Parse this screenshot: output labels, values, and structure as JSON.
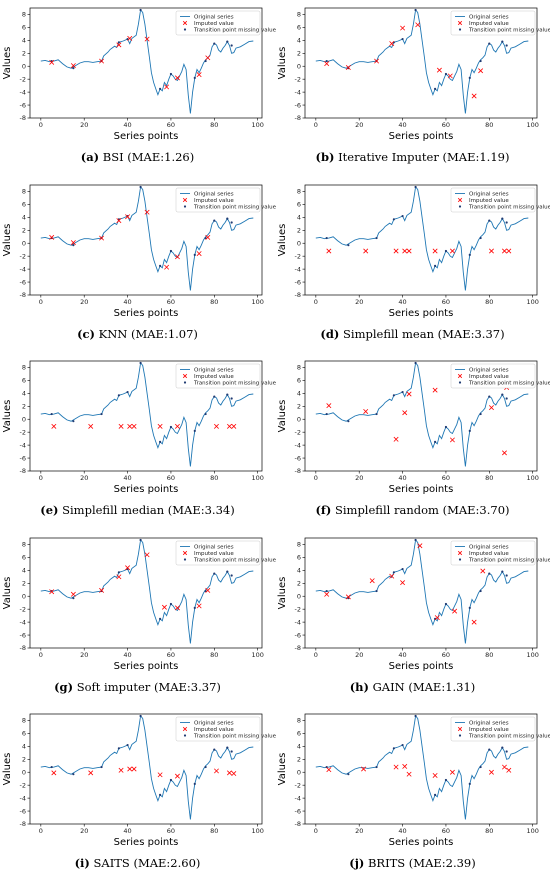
{
  "colors": {
    "series": "#1f77b4",
    "imputed": "#ff0000",
    "transition": "#1f3b73"
  },
  "legend": {
    "original": "Original series",
    "imputed": "Imputed value",
    "transition": "Transition point missing value"
  },
  "chart_data": {
    "type": "line",
    "xlabel": "Series points",
    "ylabel": "Values",
    "xlim": [
      -5,
      102
    ],
    "ylim": [
      -8,
      9
    ],
    "xticks": [
      0,
      20,
      40,
      60,
      80,
      100
    ],
    "yticks": [
      -8,
      -6,
      -4,
      -2,
      0,
      2,
      4,
      6,
      8
    ],
    "original_series": {
      "x": [
        0,
        2,
        4,
        6,
        8,
        10,
        12,
        14,
        16,
        18,
        20,
        22,
        24,
        26,
        28,
        29,
        31,
        32,
        34,
        35,
        36,
        38,
        40,
        41,
        42,
        44,
        45,
        46,
        47,
        48,
        49,
        50,
        51,
        52,
        53,
        54,
        55,
        56,
        57,
        58,
        59,
        60,
        61,
        62,
        63,
        64,
        65,
        66,
        67,
        68,
        69,
        70,
        71,
        72,
        73,
        74,
        75,
        76,
        77,
        78,
        79,
        80,
        81,
        82,
        83,
        84,
        85,
        86,
        87,
        88,
        89,
        90,
        92,
        94,
        96,
        98
      ],
      "y": [
        0.8,
        0.9,
        0.7,
        0.8,
        1.0,
        0.4,
        -0.1,
        -0.3,
        0.1,
        0.5,
        0.7,
        0.7,
        0.6,
        0.7,
        0.8,
        1.6,
        2.2,
        2.6,
        3.1,
        2.9,
        3.7,
        3.9,
        4.2,
        3.5,
        4.3,
        4.8,
        6.5,
        8.7,
        8.3,
        6.5,
        4.0,
        1.5,
        -1.0,
        -2.5,
        -3.5,
        -4.4,
        -3.5,
        -3.8,
        -2.5,
        -3.0,
        -2.0,
        -1.2,
        -1.5,
        -2.0,
        -2.2,
        -1.5,
        -0.8,
        0.3,
        -0.5,
        -4.5,
        -7.3,
        -4.0,
        -1.8,
        -0.5,
        -1.0,
        -0.3,
        0.5,
        1.0,
        1.3,
        1.7,
        3.0,
        3.5,
        3.3,
        2.5,
        2.2,
        2.8,
        3.2,
        3.8,
        3.2,
        2.0,
        2.1,
        2.8,
        3.0,
        3.4,
        3.8,
        3.9
      ]
    },
    "transition_points": {
      "x": [
        5,
        15,
        28,
        36,
        40,
        46,
        55,
        60,
        71,
        76,
        80,
        86,
        88
      ],
      "y": [
        0.8,
        -0.3,
        0.8,
        3.7,
        4.2,
        8.7,
        -3.5,
        -1.2,
        -1.8,
        0.8,
        3.5,
        3.8,
        3.2
      ]
    },
    "panels": [
      {
        "label": "(a)",
        "title": "BSI (MAE:1.26)",
        "imputed": [
          [
            5,
            0.6
          ],
          [
            15,
            0.1
          ],
          [
            28,
            0.8
          ],
          [
            36,
            3.3
          ],
          [
            41,
            4.3
          ],
          [
            49,
            4.2
          ],
          [
            58,
            -3.2
          ],
          [
            63,
            -1.8
          ],
          [
            73,
            -1.3
          ],
          [
            77,
            1.3
          ]
        ]
      },
      {
        "label": "(b)",
        "title": "Iterative Imputer (MAE:1.19)",
        "imputed": [
          [
            5,
            0.4
          ],
          [
            15,
            -0.2
          ],
          [
            28,
            0.8
          ],
          [
            35,
            3.5
          ],
          [
            40,
            5.9
          ],
          [
            47,
            6.4
          ],
          [
            57,
            -0.6
          ],
          [
            62,
            -1.5
          ],
          [
            73,
            -4.6
          ],
          [
            76,
            -0.7
          ]
        ]
      },
      {
        "label": "(c)",
        "title": "KNN (MAE:1.07)",
        "imputed": [
          [
            5,
            0.9
          ],
          [
            15,
            0.1
          ],
          [
            28,
            0.8
          ],
          [
            36,
            3.5
          ],
          [
            40,
            4.1
          ],
          [
            49,
            4.8
          ],
          [
            58,
            -3.7
          ],
          [
            63,
            -2.1
          ],
          [
            73,
            -1.6
          ],
          [
            77,
            0.9
          ]
        ]
      },
      {
        "label": "(d)",
        "title": "Simplefill mean (MAE:3.37)",
        "imputed": [
          [
            6,
            -1.2
          ],
          [
            23,
            -1.2
          ],
          [
            37,
            -1.2
          ],
          [
            41,
            -1.2
          ],
          [
            43,
            -1.2
          ],
          [
            55,
            -1.2
          ],
          [
            63,
            -1.2
          ],
          [
            81,
            -1.2
          ],
          [
            87,
            -1.2
          ],
          [
            89,
            -1.2
          ]
        ]
      },
      {
        "label": "(e)",
        "title": "Simplefill median (MAE:3.34)",
        "imputed": [
          [
            6,
            -1.1
          ],
          [
            23,
            -1.1
          ],
          [
            37,
            -1.1
          ],
          [
            41,
            -1.1
          ],
          [
            43,
            -1.1
          ],
          [
            55,
            -1.1
          ],
          [
            63,
            -1.1
          ],
          [
            81,
            -1.1
          ],
          [
            87,
            -1.1
          ],
          [
            89,
            -1.1
          ]
        ]
      },
      {
        "label": "(f)",
        "title": "Simplefill random (MAE:3.70)",
        "imputed": [
          [
            6,
            2.1
          ],
          [
            23,
            1.2
          ],
          [
            37,
            -3.1
          ],
          [
            41,
            1.0
          ],
          [
            43,
            3.9
          ],
          [
            55,
            4.5
          ],
          [
            63,
            -3.2
          ],
          [
            81,
            1.8
          ],
          [
            87,
            -5.2
          ],
          [
            88,
            4.9
          ]
        ]
      },
      {
        "label": "(g)",
        "title": "Soft imputer (MAE:3.37)",
        "imputed": [
          [
            5,
            0.7
          ],
          [
            15,
            0.3
          ],
          [
            28,
            0.9
          ],
          [
            36,
            3.0
          ],
          [
            40,
            4.4
          ],
          [
            49,
            6.4
          ],
          [
            57,
            -1.7
          ],
          [
            63,
            -1.8
          ],
          [
            73,
            -1.5
          ],
          [
            77,
            0.9
          ]
        ]
      },
      {
        "label": "(h)",
        "title": "GAIN (MAE:1.31)",
        "imputed": [
          [
            5,
            0.3
          ],
          [
            15,
            -0.1
          ],
          [
            26,
            2.4
          ],
          [
            35,
            3.1
          ],
          [
            40,
            2.1
          ],
          [
            48,
            7.8
          ],
          [
            56,
            -3.3
          ],
          [
            64,
            -2.3
          ],
          [
            73,
            -4.0
          ],
          [
            77,
            3.9
          ]
        ]
      },
      {
        "label": "(i)",
        "title": "SAITS (MAE:2.60)",
        "imputed": [
          [
            6,
            -0.1
          ],
          [
            23,
            -0.1
          ],
          [
            37,
            0.3
          ],
          [
            41,
            0.5
          ],
          [
            43,
            0.5
          ],
          [
            55,
            -0.4
          ],
          [
            63,
            -0.6
          ],
          [
            81,
            0.2
          ],
          [
            87,
            -0.1
          ],
          [
            89,
            -0.2
          ]
        ]
      },
      {
        "label": "(j)",
        "title": "BRITS (MAE:2.39)",
        "imputed": [
          [
            6,
            0.4
          ],
          [
            22,
            0.5
          ],
          [
            37,
            0.8
          ],
          [
            41,
            0.9
          ],
          [
            43,
            -0.3
          ],
          [
            55,
            -0.5
          ],
          [
            63,
            0.0
          ],
          [
            81,
            0.0
          ],
          [
            87,
            0.8
          ],
          [
            89,
            0.3
          ]
        ]
      }
    ]
  }
}
